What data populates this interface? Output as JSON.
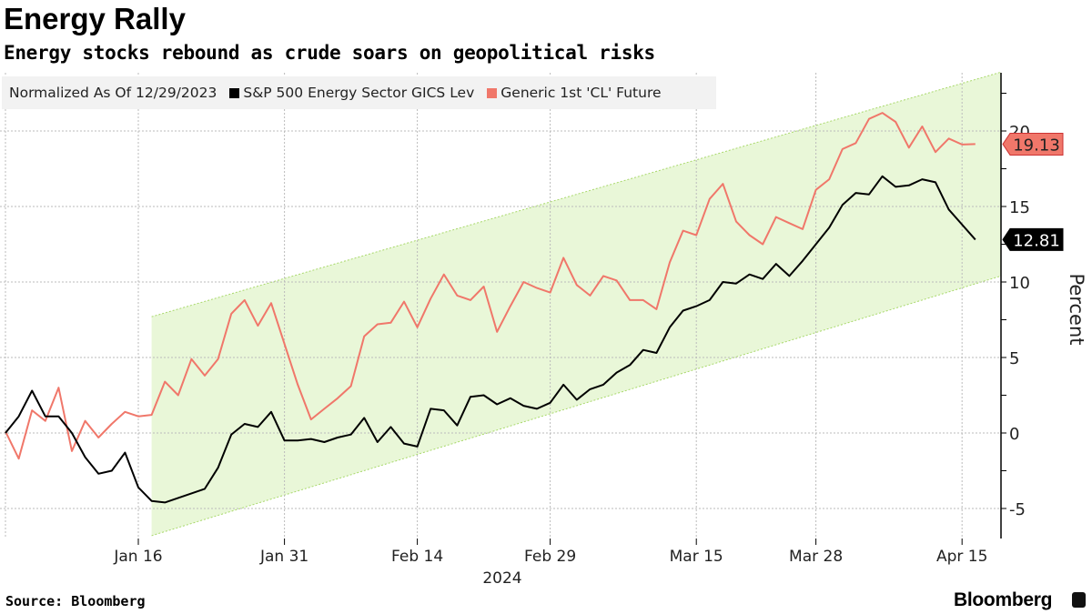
{
  "header": {
    "title": "Energy Rally",
    "subtitle": "Energy stocks rebound as crude soars on geopolitical risks"
  },
  "footer": {
    "source": "Source: Bloomberg",
    "logo": "Bloomberg",
    "logo_icon": "bloomberg-chart-icon"
  },
  "chart_data": {
    "type": "line",
    "title": "Energy Rally",
    "subtitle": "Energy stocks rebound as crude soars on geopolitical risks",
    "legend_note": "Normalized As Of 12/29/2023",
    "ylabel": "Percent",
    "xlabel": "2024",
    "ylim": [
      -7,
      24
    ],
    "y_ticks": [
      -5,
      0,
      5,
      10,
      15,
      20
    ],
    "x_ticks": [
      {
        "date": "2024-01-16",
        "label": "Jan 16"
      },
      {
        "date": "2024-01-31",
        "label": "Jan 31"
      },
      {
        "date": "2024-02-14",
        "label": "Feb 14"
      },
      {
        "date": "2024-02-29",
        "label": "Feb 29"
      },
      {
        "date": "2024-03-15",
        "label": "Mar 15"
      },
      {
        "date": "2024-03-28",
        "label": "Mar 28"
      },
      {
        "date": "2024-04-15",
        "label": "Apr 15"
      }
    ],
    "grid": true,
    "legend_placement": "top-left",
    "x": [
      "2023-12-29",
      "2024-01-02",
      "2024-01-03",
      "2024-01-04",
      "2024-01-05",
      "2024-01-08",
      "2024-01-09",
      "2024-01-10",
      "2024-01-11",
      "2024-01-12",
      "2024-01-16",
      "2024-01-17",
      "2024-01-18",
      "2024-01-19",
      "2024-01-22",
      "2024-01-23",
      "2024-01-24",
      "2024-01-25",
      "2024-01-26",
      "2024-01-29",
      "2024-01-30",
      "2024-01-31",
      "2024-02-01",
      "2024-02-02",
      "2024-02-05",
      "2024-02-06",
      "2024-02-07",
      "2024-02-08",
      "2024-02-09",
      "2024-02-12",
      "2024-02-13",
      "2024-02-14",
      "2024-02-15",
      "2024-02-16",
      "2024-02-20",
      "2024-02-21",
      "2024-02-22",
      "2024-02-23",
      "2024-02-26",
      "2024-02-27",
      "2024-02-28",
      "2024-02-29",
      "2024-03-01",
      "2024-03-04",
      "2024-03-05",
      "2024-03-06",
      "2024-03-07",
      "2024-03-08",
      "2024-03-11",
      "2024-03-12",
      "2024-03-13",
      "2024-03-14",
      "2024-03-15",
      "2024-03-18",
      "2024-03-19",
      "2024-03-20",
      "2024-03-21",
      "2024-03-22",
      "2024-03-25",
      "2024-03-26",
      "2024-03-27",
      "2024-03-28",
      "2024-04-01",
      "2024-04-02",
      "2024-04-03",
      "2024-04-04",
      "2024-04-05",
      "2024-04-08",
      "2024-04-09",
      "2024-04-10",
      "2024-04-11",
      "2024-04-12",
      "2024-04-15",
      "2024-04-16"
    ],
    "series": [
      {
        "name": "S&P 500 Energy Sector GICS Lev",
        "color": "#000000",
        "last_label": "12.81",
        "values": [
          0,
          1.1,
          2.8,
          1.1,
          1.1,
          0,
          -1.6,
          -2.7,
          -2.5,
          -1.3,
          -3.6,
          -4.5,
          -4.6,
          -4.3,
          -4.0,
          -3.7,
          -2.3,
          -0.1,
          0.6,
          0.4,
          1.4,
          -0.5,
          -0.5,
          -0.4,
          -0.6,
          -0.3,
          -0.1,
          1.0,
          -0.6,
          0.4,
          -0.7,
          -0.9,
          1.6,
          1.5,
          0.5,
          2.4,
          2.5,
          1.9,
          2.3,
          1.8,
          1.6,
          2.0,
          3.2,
          2.2,
          2.9,
          3.2,
          4.0,
          4.5,
          5.5,
          5.3,
          7.0,
          8.1,
          8.4,
          8.8,
          10.0,
          9.9,
          10.5,
          10.2,
          11.2,
          10.4,
          11.4,
          12.5,
          13.6,
          15.1,
          15.9,
          15.8,
          17.0,
          16.3,
          16.4,
          16.8,
          16.6,
          14.8,
          13.8,
          12.81
        ]
      },
      {
        "name": "Generic 1st 'CL' Future",
        "color": "#f0776a",
        "last_label": "19.13",
        "values": [
          0.1,
          -1.7,
          1.5,
          0.8,
          3.0,
          -1.2,
          0.8,
          -0.3,
          0.6,
          1.4,
          1.1,
          1.2,
          3.4,
          2.5,
          4.9,
          3.8,
          4.9,
          7.9,
          8.8,
          7.1,
          8.6,
          5.9,
          3.2,
          0.9,
          1.6,
          2.3,
          3.1,
          6.4,
          7.2,
          7.3,
          8.7,
          7.0,
          8.9,
          10.5,
          9.1,
          8.8,
          9.7,
          6.7,
          8.4,
          10.0,
          9.6,
          9.3,
          11.6,
          9.8,
          9.1,
          10.4,
          10.1,
          8.8,
          8.8,
          8.2,
          11.3,
          13.4,
          13.1,
          15.5,
          16.5,
          14.0,
          13.1,
          12.5,
          14.3,
          13.9,
          13.5,
          16.1,
          16.8,
          18.8,
          19.2,
          20.8,
          21.2,
          20.6,
          18.9,
          20.3,
          18.6,
          19.5,
          19.1,
          19.13
        ]
      }
    ],
    "channel": {
      "start": "2024-01-17",
      "upper": [
        7.7,
        23.9
      ],
      "lower": [
        -6.8,
        10.4
      ],
      "color": "#e9f7d8"
    }
  }
}
